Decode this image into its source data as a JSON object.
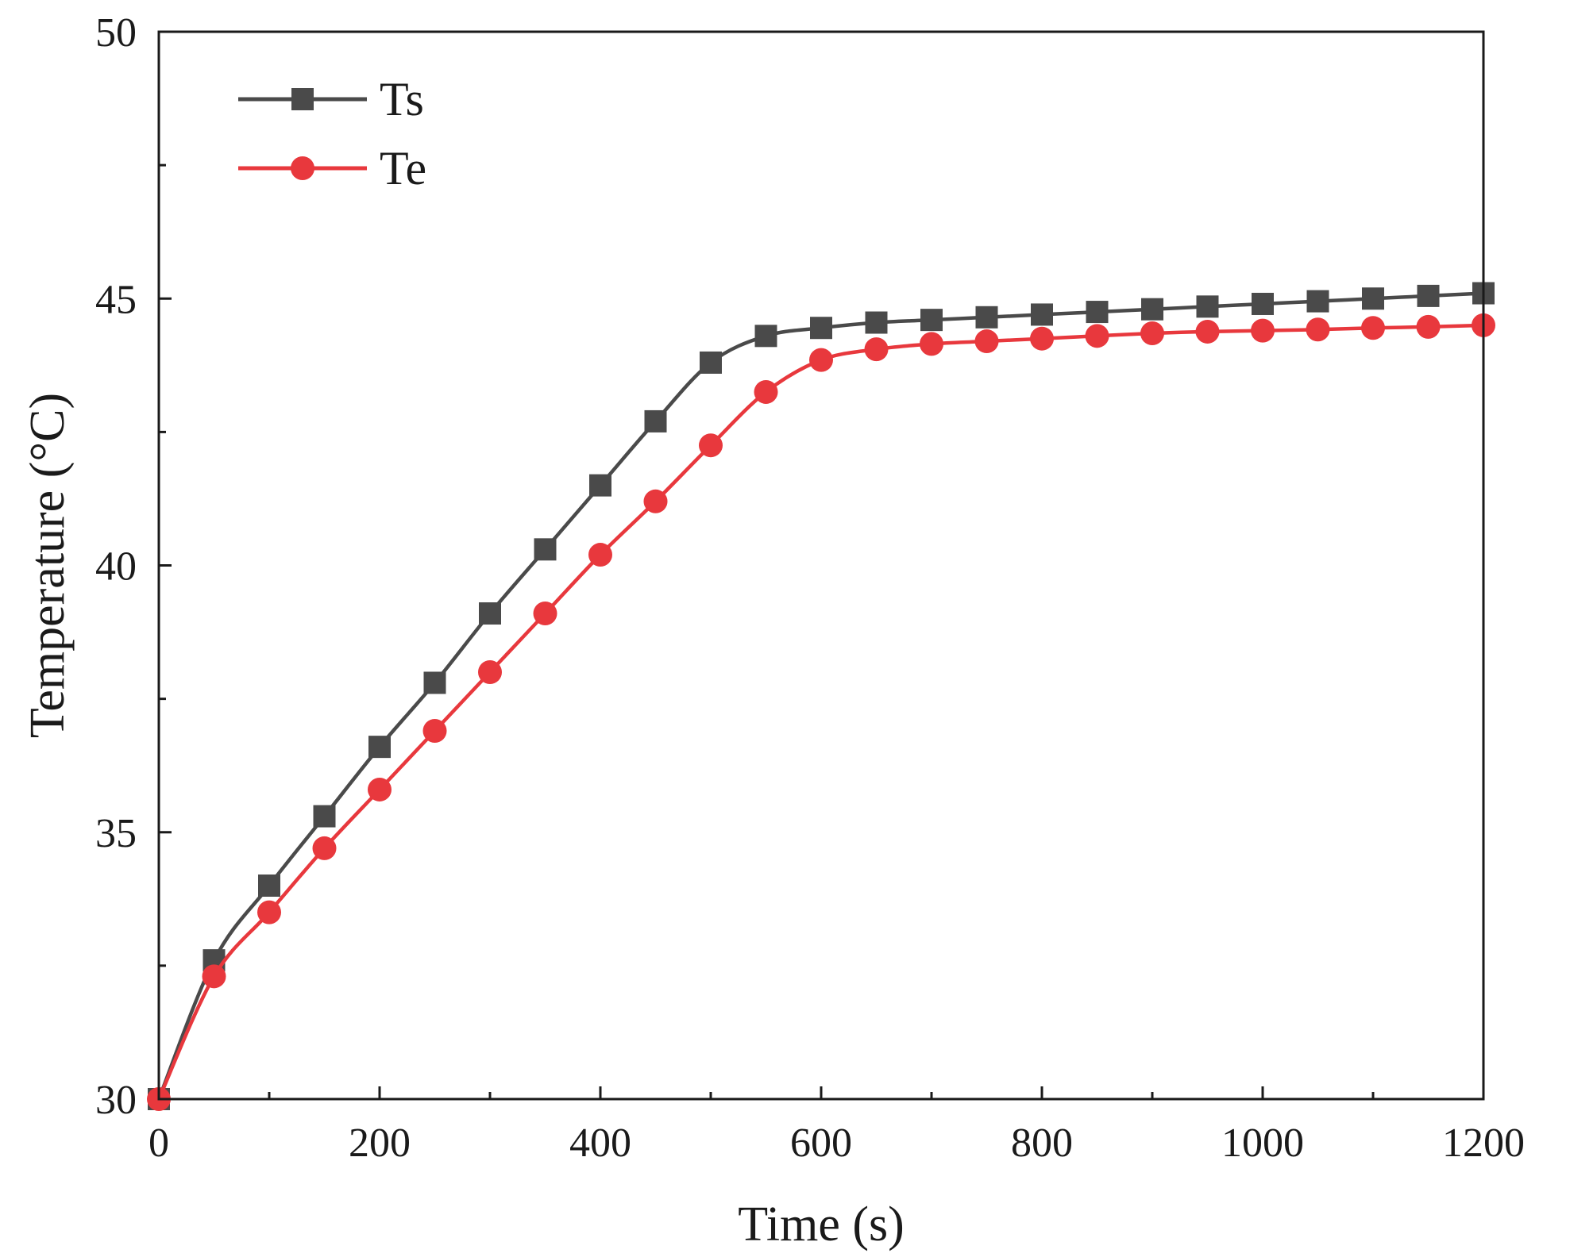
{
  "chart_data": {
    "type": "line",
    "title": "",
    "xlabel": "Time (s)",
    "ylabel": "Temperature (°C)",
    "xlim": [
      0,
      1200
    ],
    "ylim": [
      30,
      50
    ],
    "xticks": [
      0,
      200,
      400,
      600,
      800,
      1000,
      1200
    ],
    "yticks": [
      30,
      35,
      40,
      45,
      50
    ],
    "x_minor_step": 100,
    "y_minor_step": 2.5,
    "grid": false,
    "legend_position": "top-left",
    "x": [
      0,
      50,
      100,
      150,
      200,
      250,
      300,
      350,
      400,
      450,
      500,
      550,
      600,
      650,
      700,
      750,
      800,
      850,
      900,
      950,
      1000,
      1050,
      1100,
      1150,
      1200
    ],
    "series": [
      {
        "name": "Ts",
        "color": "#4a4a4a",
        "marker": "square",
        "values": [
          30.0,
          32.6,
          34.0,
          35.3,
          36.6,
          37.8,
          39.1,
          40.3,
          41.5,
          42.7,
          43.8,
          44.3,
          44.45,
          44.55,
          44.6,
          44.65,
          44.7,
          44.75,
          44.8,
          44.85,
          44.9,
          44.95,
          45.0,
          45.05,
          45.1
        ]
      },
      {
        "name": "Te",
        "color": "#e8383d",
        "marker": "circle",
        "values": [
          30.0,
          32.3,
          33.5,
          34.7,
          35.8,
          36.9,
          38.0,
          39.1,
          40.2,
          41.2,
          42.25,
          43.25,
          43.85,
          44.05,
          44.15,
          44.2,
          44.25,
          44.3,
          44.35,
          44.38,
          44.4,
          44.42,
          44.45,
          44.47,
          44.5
        ]
      }
    ]
  }
}
